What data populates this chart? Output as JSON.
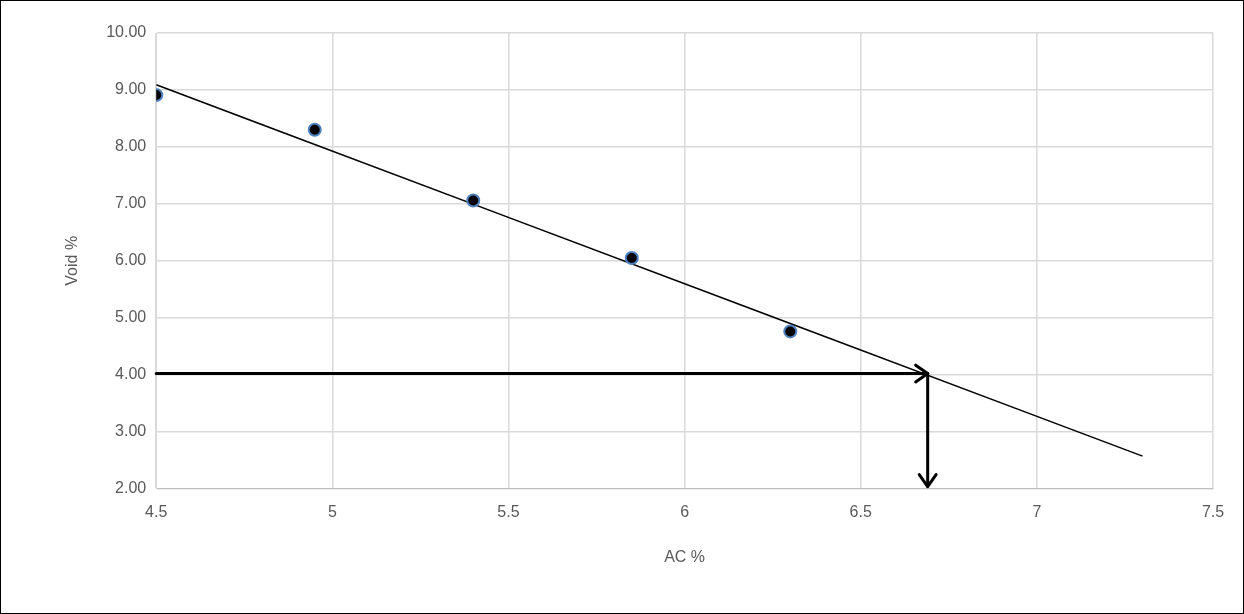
{
  "chart_data": {
    "type": "scatter",
    "xlabel": "AC %",
    "ylabel": "Void %",
    "series": [
      {
        "color": "#000000",
        "x": [
          4.5,
          4.95,
          5.4,
          5.85,
          6.3
        ],
        "values": [
          8.91,
          8.3,
          7.06,
          6.05,
          4.76
        ],
        "marker": "circle"
      },
      {
        "type": "line",
        "color": "#000000",
        "x": [
          4.5,
          7.3
        ],
        "values": [
          9.09,
          2.57
        ],
        "marker": "none",
        "line_style": "solid"
      }
    ],
    "xlim": [
      4.5,
      7.5
    ],
    "xticks": [
      4.5,
      5,
      5.5,
      6,
      6.5,
      7,
      7.5
    ],
    "ylim": [
      2,
      10
    ],
    "yticks": [
      {
        "value": 2,
        "label": "2.00"
      },
      {
        "value": 3,
        "label": "3.00"
      },
      {
        "value": 4,
        "label": "4.00"
      },
      {
        "value": 5,
        "label": "5.00"
      },
      {
        "value": 6,
        "label": "6.00"
      },
      {
        "value": 7,
        "label": "7.00"
      },
      {
        "value": 8,
        "label": "8.00"
      },
      {
        "value": 9,
        "label": "9.00"
      },
      {
        "value": 10,
        "label": "10.00"
      }
    ],
    "grid": true,
    "legend": false,
    "ref_lines": [
      {
        "axis": "y",
        "value": 4.02,
        "color": "#000000",
        "line_style": "solid"
      },
      {
        "axis": "x",
        "value": 6.69,
        "color": "#000000",
        "line_style": "solid"
      }
    ]
  }
}
